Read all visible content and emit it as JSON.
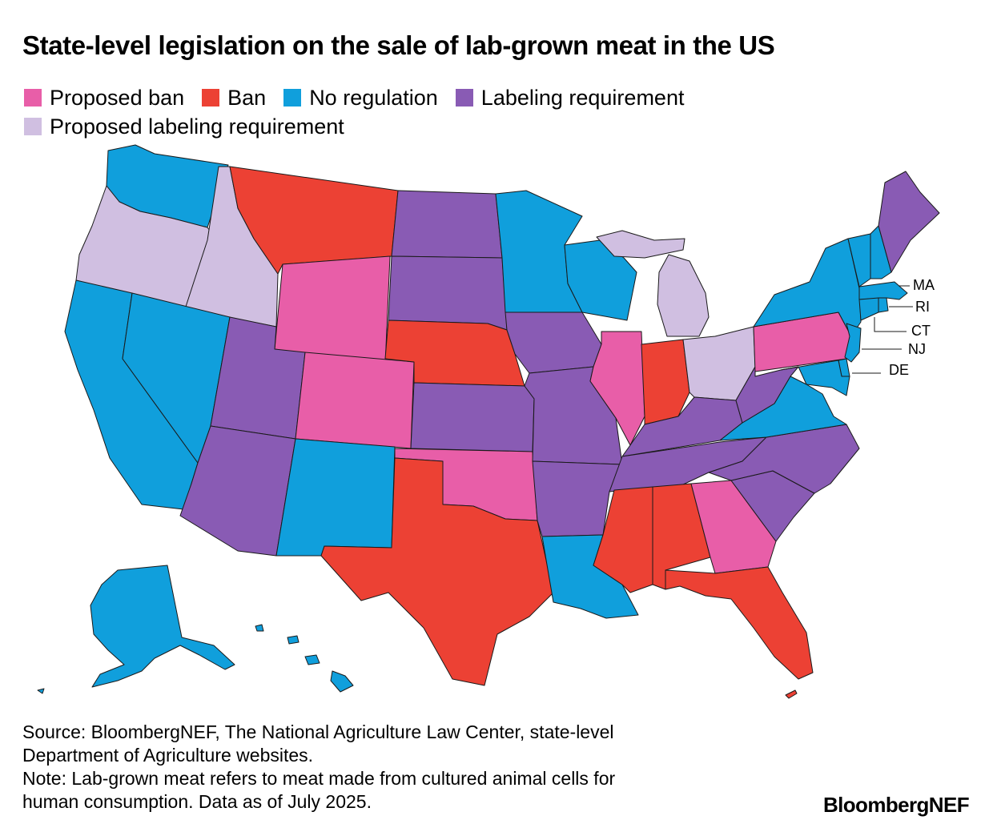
{
  "title": "State-level legislation on the sale of lab-grown meat in the US",
  "legend": [
    {
      "key": "proposed_ban",
      "label": "Proposed ban",
      "color": "#E85EA8"
    },
    {
      "key": "ban",
      "label": "Ban",
      "color": "#EC4134"
    },
    {
      "key": "no_regulation",
      "label": "No regulation",
      "color": "#109FDC"
    },
    {
      "key": "labeling_requirement",
      "label": "Labeling requirement",
      "color": "#895BB4"
    },
    {
      "key": "proposed_labeling_requirement",
      "label": "Proposed labeling requirement",
      "color": "#D0BFE1"
    }
  ],
  "states": {
    "WA": "no_regulation",
    "OR": "proposed_labeling_requirement",
    "CA": "no_regulation",
    "ID": "proposed_labeling_requirement",
    "NV": "no_regulation",
    "MT": "ban",
    "WY": "proposed_ban",
    "UT": "labeling_requirement",
    "AZ": "labeling_requirement",
    "CO": "proposed_ban",
    "NM": "no_regulation",
    "ND": "labeling_requirement",
    "SD": "labeling_requirement",
    "NE": "ban",
    "KS": "labeling_requirement",
    "OK": "proposed_ban",
    "TX": "ban",
    "MN": "no_regulation",
    "IA": "labeling_requirement",
    "MO": "labeling_requirement",
    "AR": "labeling_requirement",
    "LA": "no_regulation",
    "WI": "no_regulation",
    "IL": "proposed_ban",
    "MI": "proposed_labeling_requirement",
    "IN": "ban",
    "OH": "proposed_labeling_requirement",
    "KY": "labeling_requirement",
    "TN": "labeling_requirement",
    "MS": "ban",
    "AL": "ban",
    "GA": "proposed_ban",
    "FL": "ban",
    "SC": "labeling_requirement",
    "NC": "labeling_requirement",
    "VA": "no_regulation",
    "WV": "labeling_requirement",
    "PA": "proposed_ban",
    "NY": "no_regulation",
    "VT": "no_regulation",
    "NH": "no_regulation",
    "ME": "labeling_requirement",
    "MA": "no_regulation",
    "RI": "no_regulation",
    "CT": "no_regulation",
    "NJ": "no_regulation",
    "DE": "no_regulation",
    "MD": "no_regulation",
    "AK": "no_regulation",
    "HI": "no_regulation"
  },
  "callouts": {
    "MA": "MA",
    "RI": "RI",
    "CT": "CT",
    "NJ": "NJ",
    "DE": "DE"
  },
  "source": {
    "line1": "Source: BloombergNEF, The National Agriculture Law Center, state-level",
    "line2": "Department of Agriculture websites.",
    "line3": "Note: Lab-grown meat refers to meat made from cultured animal cells for",
    "line4": "human consumption. Data as of July 2025."
  },
  "brand": "BloombergNEF"
}
